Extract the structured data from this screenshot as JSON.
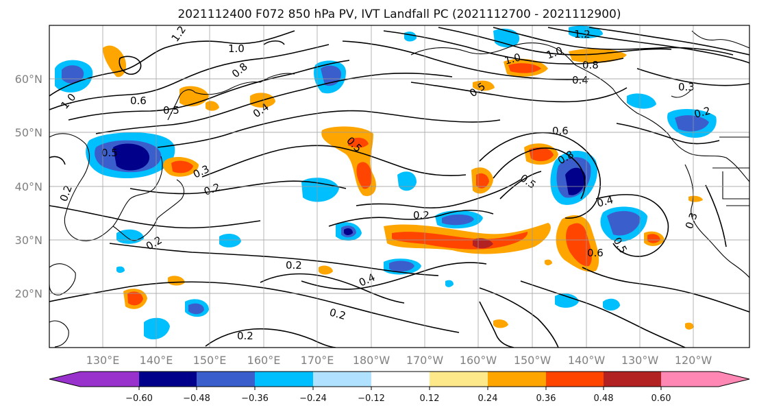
{
  "figure": {
    "title": "2021112400 F072 850 hPa PV, IVT Landfall PC (2021112700 - 2021112900)"
  },
  "map": {
    "lon_ticks": [
      "130°E",
      "140°E",
      "150°E",
      "160°E",
      "170°E",
      "180°W",
      "170°W",
      "160°W",
      "150°W",
      "140°W",
      "130°W",
      "120°W"
    ],
    "lat_ticks": [
      "60°N",
      "50°N",
      "40°N",
      "30°N",
      "20°N"
    ],
    "gridlines": true,
    "contour_labels": [
      {
        "text": "1.2"
      },
      {
        "text": "1.0"
      },
      {
        "text": "1.2"
      },
      {
        "text": "1.0"
      },
      {
        "text": "0.6"
      },
      {
        "text": "0.5"
      },
      {
        "text": "0.8"
      },
      {
        "text": "0.4"
      },
      {
        "text": "0.5"
      },
      {
        "text": "1.0"
      },
      {
        "text": "1.0"
      },
      {
        "text": "0.8"
      },
      {
        "text": "0.4"
      },
      {
        "text": "0.3"
      },
      {
        "text": "0.2"
      },
      {
        "text": "0.5"
      },
      {
        "text": "0.3"
      },
      {
        "text": "0.2"
      },
      {
        "text": "0.5"
      },
      {
        "text": "0.6"
      },
      {
        "text": "0.8"
      },
      {
        "text": "0.5"
      },
      {
        "text": "0.2"
      },
      {
        "text": "0.4"
      },
      {
        "text": "0.5"
      },
      {
        "text": "0.6"
      },
      {
        "text": "0.2"
      },
      {
        "text": "0.2"
      },
      {
        "text": "0.4"
      },
      {
        "text": "0.2"
      },
      {
        "text": "0.2"
      },
      {
        "text": "0.3"
      },
      {
        "text": "0.2"
      }
    ]
  },
  "colorbar": {
    "ticks": [
      "−0.60",
      "−0.48",
      "−0.36",
      "−0.24",
      "−0.12",
      "0.12",
      "0.24",
      "0.36",
      "0.48",
      "0.60"
    ],
    "colors": [
      "#9932cc",
      "#00008b",
      "#3a5fcd",
      "#00bfff",
      "#b0e2ff",
      "#ffffff",
      "#fde88a",
      "#ffa500",
      "#ff4500",
      "#b22222",
      "#ff87b4"
    ]
  }
}
